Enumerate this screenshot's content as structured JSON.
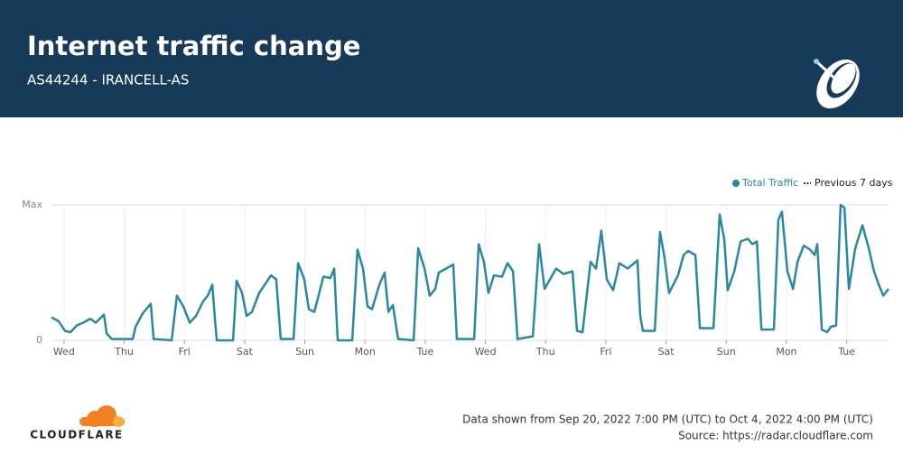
{
  "chart_data": {
    "type": "line",
    "title": "Internet traffic change",
    "subtitle": "AS44244 - IRANCELL-AS",
    "x": [
      0,
      2.9,
      5.4,
      7.6,
      10.1,
      12.6,
      15.5,
      17.6,
      20.9,
      22,
      24.1,
      32.4,
      33.5,
      36.4,
      39.6,
      40.7,
      47.9,
      50,
      52.6,
      55.1,
      57.6,
      60.5,
      62.3,
      64.1,
      65.2,
      65.9,
      72.4,
      73.8,
      76,
      77.8,
      79.9,
      82.8,
      85.7,
      87.5,
      89.6,
      91.4,
      96.5,
      98.3,
      100.8,
      102.6,
      104.8,
      106.2,
      108.4,
      111.2,
      112.7,
      114.1,
      119.9,
      122,
      124.2,
      126,
      127.8,
      130.7,
      132.8,
      134.3,
      136.1,
      138.2,
      144.4,
      146.2,
      148.7,
      150.8,
      153,
      154.4,
      157.3,
      160.2,
      161.6,
      168.5,
      170.3,
      172.4,
      174.2,
      176.4,
      179.6,
      181.8,
      184,
      185.8,
      191.9,
      194.4,
      196.6,
      198.7,
      201.2,
      204.1,
      207.7,
      209.5,
      211.7,
      214.9,
      217.1,
      219.2,
      221.4,
      223.9,
      226.4,
      229.7,
      233.6,
      234.7,
      235.8,
      238.7,
      240.5,
      242.6,
      244.4,
      246.2,
      249.8,
      252,
      253.8,
      256.7,
      258.5,
      263.9,
      266.4,
      268.2,
      269.6,
      272.2,
      274.7,
      277.6,
      279.4,
      281.2,
      283,
      288,
      289.8,
      291.2,
      293.4,
      295.6,
      297.4,
      299.9,
      302.4,
      304.2,
      305.3,
      307.1,
      309.2,
      310.7,
      312.8,
      314.6,
      316.1,
      317.9,
      320.4,
      323.3,
      325.8,
      327.9,
      329.8,
      331.6,
      333.7
    ],
    "series": [
      {
        "name": "Total Traffic",
        "color": "#2a88a3",
        "values": [
          17,
          14,
          7,
          6,
          11,
          13,
          16,
          13,
          19,
          5,
          1,
          1,
          10,
          20,
          27,
          1,
          0,
          33,
          25,
          13,
          18,
          29,
          33,
          41,
          15,
          0,
          0,
          44,
          35,
          18,
          21,
          35,
          43,
          48,
          45,
          1,
          1,
          57,
          45,
          23,
          21,
          31,
          47,
          46,
          53,
          0,
          0,
          67,
          53,
          25,
          23,
          41,
          50,
          21,
          26,
          1,
          0,
          68,
          53,
          33,
          38,
          50,
          53,
          56,
          1,
          1,
          71,
          58,
          35,
          48,
          47,
          57,
          51,
          1,
          3,
          71,
          38,
          45,
          53,
          49,
          51,
          7,
          6,
          58,
          53,
          81,
          45,
          37,
          57,
          53,
          59,
          18,
          7,
          7,
          7,
          80,
          61,
          35,
          48,
          63,
          66,
          63,
          9,
          9,
          93,
          75,
          37,
          51,
          73,
          75,
          71,
          73,
          8,
          8,
          89,
          95,
          51,
          38,
          58,
          70,
          67,
          63,
          71,
          8,
          6,
          10,
          11,
          100,
          98,
          38,
          68,
          85,
          68,
          51,
          41,
          33,
          38
        ]
      }
    ],
    "previous_label": "Previous 7 days",
    "xlim": [
      0,
      333.7
    ],
    "xticks": [
      {
        "value": 5,
        "label": "Wed"
      },
      {
        "value": 29,
        "label": "Thu"
      },
      {
        "value": 53,
        "label": "Fri"
      },
      {
        "value": 77,
        "label": "Sat"
      },
      {
        "value": 101,
        "label": "Sun"
      },
      {
        "value": 125,
        "label": "Mon"
      },
      {
        "value": 149,
        "label": "Tue"
      },
      {
        "value": 173,
        "label": "Wed"
      },
      {
        "value": 197,
        "label": "Thu"
      },
      {
        "value": 221,
        "label": "Fri"
      },
      {
        "value": 245,
        "label": "Sat"
      },
      {
        "value": 269,
        "label": "Sun"
      },
      {
        "value": 293,
        "label": "Mon"
      },
      {
        "value": 317,
        "label": "Tue"
      }
    ],
    "ylim": [
      0,
      100
    ],
    "yticks": [
      0,
      {
        "value": 100,
        "label": "Max"
      }
    ],
    "grid": true,
    "footer_range": "Data shown from Sep 20, 2022 7:00 PM (UTC) to Oct 4, 2022 4:00 PM (UTC)",
    "footer_source": "Source: https://radar.cloudflare.com",
    "brand": "CLOUDFLARE"
  }
}
